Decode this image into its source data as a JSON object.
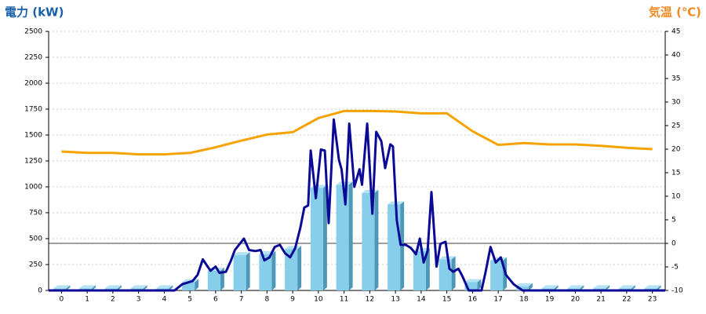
{
  "chart_data": {
    "type": "bar",
    "title_left": "電力 (kW)",
    "title_right": "気温 (℃)",
    "categories": [
      "0",
      "1",
      "2",
      "3",
      "4",
      "5",
      "6",
      "7",
      "8",
      "9",
      "10",
      "11",
      "12",
      "13",
      "14",
      "15",
      "16",
      "17",
      "18",
      "19",
      "20",
      "21",
      "22",
      "23"
    ],
    "xlim": [
      -0.5,
      23.5
    ],
    "ylim": [
      0,
      2500
    ],
    "yticks": [
      0,
      250,
      500,
      750,
      1000,
      1250,
      1500,
      1750,
      2000,
      2250,
      2500
    ],
    "y2lim": [
      -10,
      45
    ],
    "y2ticks": [
      -10,
      -5,
      0,
      5,
      10,
      15,
      20,
      25,
      30,
      35,
      40,
      45
    ],
    "grid": true,
    "series": [
      {
        "type": "bar",
        "color": "#87ceeb",
        "side_color": "#4f97b8",
        "values": [
          20,
          20,
          20,
          20,
          20,
          80,
          190,
          340,
          350,
          400,
          990,
          1020,
          940,
          830,
          380,
          300,
          80,
          290,
          40,
          20,
          20,
          20,
          20,
          20
        ]
      },
      {
        "type": "line",
        "color": "#0a0a96",
        "x": [
          -0.5,
          4.4,
          4.7,
          5.1,
          5.3,
          5.5,
          5.8,
          6.0,
          6.15,
          6.4,
          6.6,
          6.75,
          7.1,
          7.3,
          7.55,
          7.75,
          7.9,
          8.1,
          8.3,
          8.5,
          8.7,
          8.9,
          9.1,
          9.3,
          9.45,
          9.6,
          9.7,
          9.9,
          10.1,
          10.25,
          10.4,
          10.6,
          10.8,
          10.9,
          11.05,
          11.2,
          11.4,
          11.6,
          11.7,
          11.9,
          12.1,
          12.25,
          12.45,
          12.6,
          12.8,
          12.9,
          13.05,
          13.2,
          13.4,
          13.6,
          13.8,
          13.95,
          14.1,
          14.25,
          14.4,
          14.6,
          14.75,
          14.95,
          15.1,
          15.25,
          15.45,
          15.6,
          15.85,
          16.35,
          16.5,
          16.7,
          16.9,
          17.1,
          17.3,
          17.6,
          17.95,
          23.5
        ],
        "values": [
          0,
          0,
          60,
          90,
          150,
          300,
          190,
          230,
          170,
          180,
          290,
          390,
          500,
          390,
          380,
          390,
          290,
          320,
          420,
          440,
          360,
          320,
          410,
          610,
          800,
          820,
          1350,
          890,
          1360,
          1350,
          650,
          1650,
          1260,
          1170,
          830,
          1610,
          1000,
          1170,
          1020,
          1610,
          740,
          1530,
          1440,
          1180,
          1410,
          1390,
          680,
          440,
          440,
          410,
          350,
          500,
          270,
          380,
          950,
          230,
          450,
          470,
          210,
          180,
          210,
          140,
          0,
          0,
          170,
          420,
          270,
          320,
          150,
          60,
          0,
          0
        ]
      },
      {
        "type": "line",
        "axis": "y2",
        "color": "#f5a300",
        "values": [
          19.5,
          19.2,
          19.2,
          18.9,
          18.9,
          19.2,
          20.4,
          21.8,
          23.1,
          23.6,
          26.6,
          28.1,
          28.1,
          28.0,
          27.6,
          27.6,
          23.8,
          20.9,
          21.3,
          21.0,
          21.0,
          20.7,
          20.3,
          20.0
        ]
      }
    ]
  }
}
